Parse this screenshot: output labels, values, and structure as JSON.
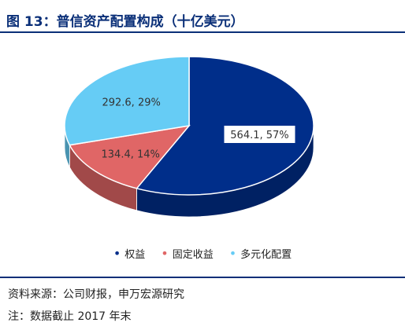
{
  "figure": {
    "title": "图 13：普信资产配置构成（十亿美元）",
    "source": "资料来源：公司财报，申万宏源研究",
    "note": "注：数据截止 2017 年末"
  },
  "chart_data": {
    "type": "pie",
    "style": "3d",
    "categories": [
      "权益",
      "固定收益",
      "多元化配置"
    ],
    "values": [
      564.1,
      134.4,
      292.6
    ],
    "data_labels": [
      "564.1, 57%",
      "134.4, 14%",
      "292.6, 29%"
    ],
    "colors": [
      "#002e8a",
      "#e06666",
      "#66ccf5"
    ],
    "legend_position": "bottom",
    "legend": [
      {
        "name": "权益",
        "color": "#002e8a"
      },
      {
        "name": "固定收益",
        "color": "#e06666"
      },
      {
        "name": "多元化配置",
        "color": "#66ccf5"
      }
    ]
  }
}
